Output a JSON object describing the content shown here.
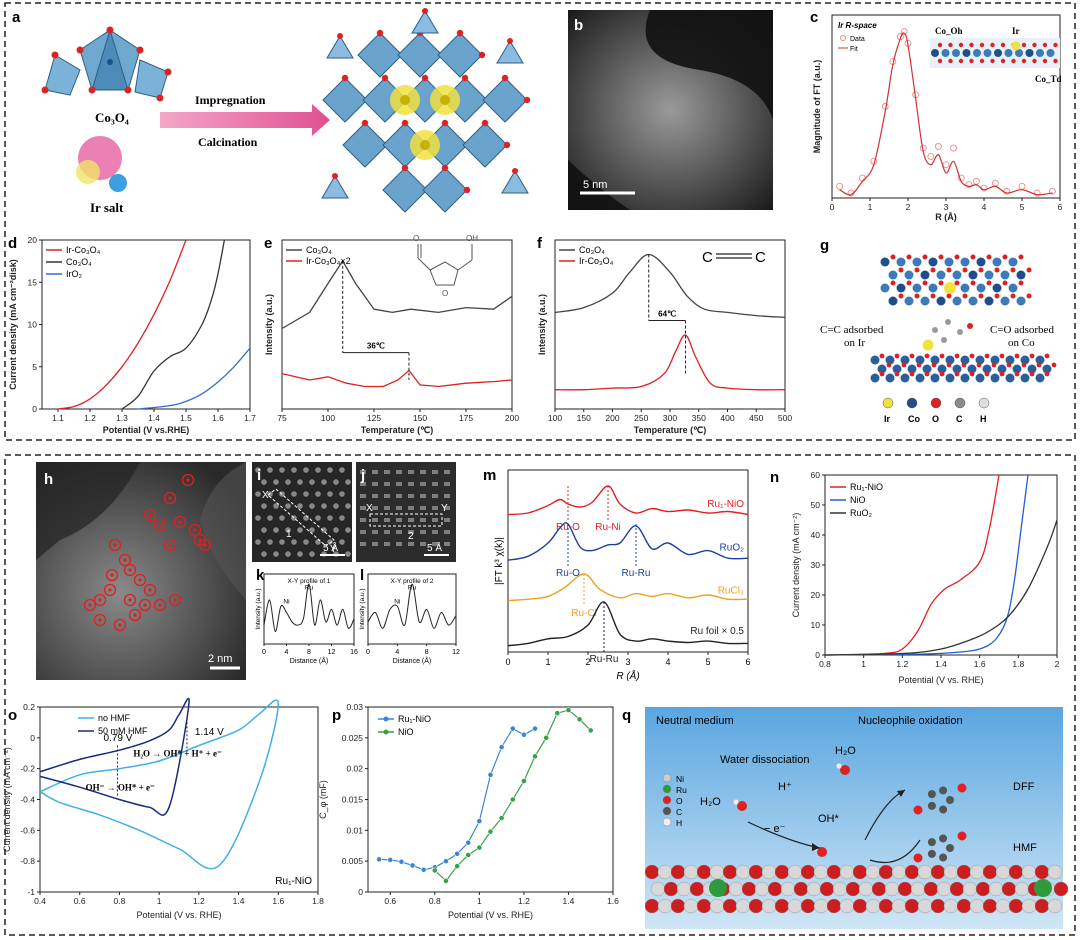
{
  "panel_labels": [
    "a",
    "b",
    "c",
    "d",
    "e",
    "f",
    "g",
    "h",
    "i",
    "j",
    "k",
    "l",
    "m",
    "n",
    "o",
    "p",
    "q"
  ],
  "a": {
    "co3o4": "Co₃O₄",
    "ir_salt": "Ir salt",
    "arrow_top": "Impregnation",
    "arrow_bottom": "Calcination"
  },
  "b": {
    "scale": "5 nm"
  },
  "g": {
    "left_note": "C=C adsorbed on Ir",
    "right_note": "C=O adsorbed on Co",
    "atoms": [
      "Ir",
      "Co",
      "O",
      "C",
      "H"
    ]
  },
  "h": {
    "scale": "2 nm"
  },
  "i": {
    "x": "X",
    "y": "Y",
    "num": "1",
    "scale": "5 Å"
  },
  "j": {
    "x": "X",
    "y": "Y",
    "num": "2",
    "scale": "5 Å"
  },
  "q": {
    "neutral": "Neutral medium",
    "nucleophile": "Nucleophile oxidation",
    "water_dissoc": "Water dissociation",
    "h2o_top": "H₂O",
    "h2o_left": "H₂O",
    "hplus": "H⁺",
    "electron": "− e⁻",
    "oh": "OH*",
    "dff": "DFF",
    "hmf": "HMF",
    "legend": [
      "Ni",
      "Ru",
      "O",
      "C",
      "H"
    ]
  },
  "chart_data": [
    {
      "panel": "c",
      "type": "line",
      "title": "",
      "inset_title": "Ir R-space",
      "xlabel": "R (Å)",
      "ylabel": "Magnitude of FT (a.u.)",
      "xlim": [
        0,
        6
      ],
      "xticks": [
        0,
        1,
        2,
        3,
        4,
        5,
        6
      ],
      "legend": [
        "Data",
        "Fit"
      ],
      "annotations": [
        "Co_Oh",
        "Ir",
        "Co_Td"
      ],
      "series": [
        {
          "name": "Data",
          "style": "circles",
          "x": [
            0.2,
            0.5,
            0.8,
            1.1,
            1.4,
            1.6,
            1.8,
            1.9,
            2.0,
            2.2,
            2.4,
            2.6,
            2.8,
            3.0,
            3.2,
            3.4,
            3.6,
            3.8,
            4.0,
            4.3,
            4.6,
            5.0,
            5.4,
            5.8
          ],
          "y": [
            0.07,
            0.03,
            0.12,
            0.22,
            0.55,
            0.82,
            0.97,
            1.0,
            0.93,
            0.62,
            0.3,
            0.25,
            0.31,
            0.2,
            0.3,
            0.12,
            0.08,
            0.1,
            0.06,
            0.09,
            0.04,
            0.07,
            0.03,
            0.04
          ]
        },
        {
          "name": "Fit",
          "style": "line",
          "x": [
            0.2,
            0.5,
            0.8,
            1.1,
            1.4,
            1.6,
            1.8,
            1.9,
            2.0,
            2.2,
            2.4,
            2.6,
            2.8,
            3.0,
            3.2,
            3.4,
            3.6,
            3.8,
            4.0,
            4.3,
            4.6,
            5.0,
            5.4,
            5.8
          ],
          "y": [
            0.05,
            0.02,
            0.1,
            0.2,
            0.52,
            0.8,
            0.96,
            0.99,
            0.92,
            0.6,
            0.28,
            0.2,
            0.26,
            0.15,
            0.22,
            0.1,
            0.07,
            0.08,
            0.05,
            0.07,
            0.03,
            0.05,
            0.02,
            0.03
          ]
        }
      ]
    },
    {
      "panel": "d",
      "type": "line",
      "xlabel": "Potential (V vs.RHE)",
      "ylabel": "Current density (mA cm⁻²disk)",
      "xlim": [
        1.05,
        1.7
      ],
      "ylim": [
        0,
        20
      ],
      "xticks": [
        1.1,
        1.2,
        1.3,
        1.4,
        1.5,
        1.6,
        1.7
      ],
      "yticks": [
        0,
        5,
        10,
        15,
        20
      ],
      "series": [
        {
          "name": "Ir-Co₃O₄",
          "color": "#e02020",
          "x": [
            1.1,
            1.15,
            1.2,
            1.25,
            1.3,
            1.35,
            1.4,
            1.45,
            1.5
          ],
          "y": [
            0,
            0.3,
            1.2,
            2.8,
            5,
            7.8,
            11.2,
            15.2,
            20
          ]
        },
        {
          "name": "Co₃O₄",
          "color": "#333333",
          "x": [
            1.3,
            1.35,
            1.4,
            1.45,
            1.5,
            1.55,
            1.58,
            1.6,
            1.62
          ],
          "y": [
            0,
            1.5,
            4.5,
            6.2,
            7.2,
            10,
            13,
            16,
            20
          ]
        },
        {
          "name": "IrO₂",
          "color": "#2f6fd0",
          "x": [
            1.35,
            1.45,
            1.5,
            1.55,
            1.6,
            1.65,
            1.7
          ],
          "y": [
            0,
            0.4,
            0.9,
            1.8,
            3.2,
            5,
            7.2
          ]
        }
      ]
    },
    {
      "panel": "e",
      "type": "line",
      "xlabel": "Temperature (℃)",
      "ylabel": "Intensity (a.u.)",
      "xlim": [
        75,
        200
      ],
      "xticks": [
        75,
        100,
        125,
        150,
        175,
        200
      ],
      "annotation": "36℃",
      "series": [
        {
          "name": "Co₃O₄",
          "color": "#444444",
          "peak": 108,
          "x": [
            75,
            90,
            100,
            108,
            115,
            125,
            135,
            145,
            160,
            175,
            190,
            200
          ],
          "y": [
            0.5,
            0.6,
            0.78,
            0.92,
            0.78,
            0.62,
            0.6,
            0.62,
            0.6,
            0.63,
            0.62,
            0.7
          ]
        },
        {
          "name": "Ir-Co₃O₄×2",
          "color": "#e02020",
          "peak": 144,
          "x": [
            75,
            90,
            100,
            110,
            120,
            130,
            138,
            144,
            150,
            160,
            175,
            190,
            200
          ],
          "y": [
            0.22,
            0.18,
            0.2,
            0.16,
            0.14,
            0.14,
            0.18,
            0.24,
            0.15,
            0.14,
            0.16,
            0.17,
            0.18
          ]
        }
      ]
    },
    {
      "panel": "f",
      "type": "line",
      "xlabel": "Temperature (℃)",
      "ylabel": "Intensity (a.u.)",
      "xlim": [
        100,
        500
      ],
      "xticks": [
        100,
        150,
        200,
        250,
        300,
        350,
        400,
        450,
        500
      ],
      "annotation": "64℃",
      "series": [
        {
          "name": "Co₃O₄",
          "color": "#444444",
          "peak": 263,
          "x": [
            100,
            150,
            200,
            230,
            263,
            300,
            330,
            360,
            400,
            450,
            500
          ],
          "y": [
            0.6,
            0.63,
            0.72,
            0.85,
            0.96,
            0.85,
            0.7,
            0.62,
            0.6,
            0.58,
            0.57
          ]
        },
        {
          "name": "Ir-Co₃O₄",
          "color": "#e02020",
          "peak": 327,
          "x": [
            100,
            150,
            200,
            250,
            290,
            310,
            327,
            345,
            370,
            400,
            450,
            500
          ],
          "y": [
            0.12,
            0.12,
            0.13,
            0.14,
            0.22,
            0.36,
            0.46,
            0.32,
            0.16,
            0.13,
            0.12,
            0.12
          ]
        }
      ]
    },
    {
      "panel": "k",
      "type": "line",
      "title": "X-Y profile of 1",
      "xlabel": "Distance (Å)",
      "ylabel": "Intensity (a.u.)",
      "xlim": [
        0,
        16
      ],
      "xticks": [
        0,
        4,
        8,
        12,
        16
      ],
      "annotations": [
        "Ni",
        "Ru"
      ],
      "series": [
        {
          "name": "profile",
          "color": "#222222",
          "x": [
            0,
            1,
            2,
            3,
            4,
            5,
            6,
            7,
            8,
            9,
            10,
            11,
            12,
            13,
            14,
            15,
            16
          ],
          "y": [
            0.3,
            0.7,
            0.2,
            0.6,
            0.5,
            0.35,
            0.3,
            0.4,
            0.95,
            0.3,
            0.7,
            0.35,
            0.55,
            0.3,
            0.55,
            0.25,
            0.4
          ]
        }
      ]
    },
    {
      "panel": "l",
      "type": "line",
      "title": "X-Y profile of 2",
      "xlabel": "Distance (Å)",
      "ylabel": "Intensity (a.u.)",
      "xlim": [
        0,
        12
      ],
      "xticks": [
        0,
        4,
        8,
        12
      ],
      "annotations": [
        "Ni",
        "Ru"
      ],
      "series": [
        {
          "name": "profile",
          "color": "#222222",
          "x": [
            0,
            1,
            2,
            3,
            4,
            5,
            6,
            7,
            8,
            9,
            10,
            11,
            12
          ],
          "y": [
            0.35,
            0.5,
            0.25,
            0.55,
            0.6,
            0.3,
            0.95,
            0.35,
            0.55,
            0.25,
            0.5,
            0.3,
            0.45
          ]
        }
      ]
    },
    {
      "panel": "m",
      "type": "line",
      "xlabel": "R (Å)",
      "ylabel": "|FT k³ χ(k)|",
      "xlim": [
        0,
        6
      ],
      "xticks": [
        0,
        1,
        2,
        3,
        4,
        5,
        6
      ],
      "series": [
        {
          "name": "Ru₁-NiO",
          "color": "#e02020",
          "peaks": [
            {
              "label": "Ru-O",
              "x": 1.5
            },
            {
              "label": "Ru-Ni",
              "x": 2.5
            }
          ],
          "x": [
            0,
            0.5,
            1.0,
            1.3,
            1.5,
            1.8,
            2.1,
            2.5,
            2.8,
            3.2,
            3.6,
            4.0,
            4.5,
            5.0,
            5.5,
            6.0
          ],
          "y": [
            0.05,
            0.1,
            0.35,
            0.55,
            0.4,
            0.3,
            0.45,
            1.0,
            0.4,
            0.1,
            0.25,
            0.15,
            0.2,
            0.1,
            0.15,
            0.05
          ]
        },
        {
          "name": "RuO₂",
          "color": "#1e3fa0",
          "peaks": [
            {
              "label": "Ru-O",
              "x": 1.5
            },
            {
              "label": "Ru-Ru",
              "x": 3.2
            }
          ],
          "x": [
            0,
            0.5,
            1.0,
            1.3,
            1.5,
            1.8,
            2.1,
            2.5,
            2.8,
            3.2,
            3.6,
            4.0,
            4.5,
            5.0,
            5.5,
            6.0
          ],
          "y": [
            0.05,
            0.15,
            0.5,
            0.9,
            1.0,
            0.4,
            0.3,
            0.45,
            0.5,
            0.95,
            0.35,
            0.5,
            0.2,
            0.3,
            0.1,
            0.1
          ]
        },
        {
          "name": "RuCl₃",
          "color": "#f0a020",
          "peaks": [
            {
              "label": "Ru-Cl",
              "x": 1.9
            }
          ],
          "x": [
            0,
            0.5,
            1.0,
            1.4,
            1.9,
            2.3,
            2.8,
            3.2,
            3.6,
            4.0,
            4.5,
            5.0,
            5.5,
            6.0
          ],
          "y": [
            0.05,
            0.1,
            0.2,
            0.5,
            1.0,
            0.45,
            0.15,
            0.3,
            0.2,
            0.3,
            0.15,
            0.25,
            0.1,
            0.1
          ]
        },
        {
          "name": "Ru foil × 0.5",
          "color": "#222222",
          "peaks": [
            {
              "label": "Ru-Ru",
              "x": 2.4
            }
          ],
          "x": [
            0,
            0.5,
            1.0,
            1.5,
            2.0,
            2.4,
            2.8,
            3.2,
            3.6,
            4.0,
            4.5,
            5.0,
            5.5,
            6.0
          ],
          "y": [
            0.05,
            0.1,
            0.2,
            0.25,
            0.5,
            1.0,
            0.3,
            0.15,
            0.2,
            0.15,
            0.12,
            0.15,
            0.1,
            0.1
          ]
        }
      ]
    },
    {
      "panel": "n",
      "type": "line",
      "xlabel": "Potential (V vs. RHE)",
      "ylabel": "Current density (mA cm⁻²)",
      "xlim": [
        0.8,
        2.0
      ],
      "ylim": [
        0,
        60
      ],
      "xticks": [
        0.8,
        1.0,
        1.2,
        1.4,
        1.6,
        1.8,
        2.0
      ],
      "yticks": [
        0,
        10,
        20,
        30,
        40,
        50,
        60
      ],
      "series": [
        {
          "name": "Ru₁-NiO",
          "color": "#e02020",
          "x": [
            0.8,
            1.1,
            1.2,
            1.28,
            1.35,
            1.42,
            1.5,
            1.6,
            1.65,
            1.7
          ],
          "y": [
            0,
            0.5,
            2,
            8,
            17,
            22,
            25,
            31,
            42,
            60
          ]
        },
        {
          "name": "NiO",
          "color": "#2060d0",
          "x": [
            0.8,
            1.3,
            1.5,
            1.6,
            1.68,
            1.74,
            1.78,
            1.82,
            1.85
          ],
          "y": [
            0,
            0.3,
            1,
            2,
            5,
            12,
            25,
            45,
            60
          ]
        },
        {
          "name": "RuO₂",
          "color": "#333333",
          "x": [
            0.8,
            1.2,
            1.4,
            1.55,
            1.65,
            1.75,
            1.85,
            1.95,
            2.0
          ],
          "y": [
            0,
            0.5,
            2,
            5,
            8,
            13,
            22,
            36,
            45
          ]
        }
      ]
    },
    {
      "panel": "o",
      "type": "line",
      "xlabel": "Potential (V vs. RHE)",
      "ylabel": "Current density (mA cm⁻²)",
      "xlim": [
        0.4,
        1.8
      ],
      "ylim": [
        -1.0,
        0.2
      ],
      "xticks": [
        0.4,
        0.6,
        0.8,
        1.0,
        1.2,
        1.4,
        1.6,
        1.8
      ],
      "yticks": [
        -1.0,
        -0.8,
        -0.6,
        -0.4,
        -0.2,
        0.0,
        0.2
      ],
      "annotations": [
        "0.79 V",
        "1.14 V",
        "H₂O → OH* + H⁺ + e⁻",
        "OH⁻ → OH* + e⁻",
        "Ru₁-NiO"
      ],
      "series": [
        {
          "name": "no HMF",
          "color": "#40b0e8",
          "x": [
            0.4,
            0.6,
            0.8,
            1.0,
            1.2,
            1.4,
            1.5,
            1.6,
            1.5,
            1.3,
            1.1,
            0.9,
            0.7,
            0.5,
            0.4
          ],
          "y": [
            -0.35,
            -0.24,
            -0.2,
            -0.15,
            -0.05,
            0.05,
            0.15,
            0.22,
            -0.3,
            -0.83,
            -0.72,
            -0.6,
            -0.5,
            -0.42,
            -0.35
          ]
        },
        {
          "name": "50 mM HMF",
          "color": "#1a2a80",
          "x": [
            0.4,
            0.6,
            0.8,
            0.95,
            1.05,
            1.1,
            1.15,
            1.05,
            0.95,
            0.8,
            0.6,
            0.4
          ],
          "y": [
            -0.22,
            -0.14,
            -0.08,
            -0.02,
            0.05,
            0.15,
            0.22,
            -0.45,
            -0.45,
            -0.4,
            -0.32,
            -0.25
          ]
        }
      ]
    },
    {
      "panel": "p",
      "type": "line",
      "xlabel": "Potential (V vs. RHE)",
      "ylabel": "C_φ (mF)",
      "xlim": [
        0.5,
        1.6
      ],
      "ylim": [
        0,
        0.03
      ],
      "xticks": [
        0.6,
        0.8,
        1.0,
        1.2,
        1.4,
        1.6
      ],
      "yticks": [
        0.0,
        0.005,
        0.01,
        0.015,
        0.02,
        0.025,
        0.03
      ],
      "series": [
        {
          "name": "Ru₁-NiO",
          "color": "#3a86d0",
          "x": [
            0.55,
            0.6,
            0.65,
            0.7,
            0.75,
            0.8,
            0.85,
            0.9,
            0.95,
            1.0,
            1.05,
            1.1,
            1.15,
            1.2,
            1.25
          ],
          "y": [
            0.0053,
            0.0052,
            0.0049,
            0.0043,
            0.0036,
            0.004,
            0.005,
            0.0062,
            0.008,
            0.0115,
            0.019,
            0.0235,
            0.0265,
            0.0255,
            0.0265
          ]
        },
        {
          "name": "NiO",
          "color": "#38a048",
          "x": [
            0.8,
            0.85,
            0.9,
            0.95,
            1.0,
            1.05,
            1.1,
            1.15,
            1.2,
            1.25,
            1.3,
            1.35,
            1.4,
            1.45,
            1.5
          ],
          "y": [
            0.0035,
            0.0018,
            0.0042,
            0.006,
            0.0072,
            0.0098,
            0.012,
            0.015,
            0.018,
            0.022,
            0.025,
            0.029,
            0.0295,
            0.028,
            0.0262
          ]
        }
      ]
    }
  ]
}
